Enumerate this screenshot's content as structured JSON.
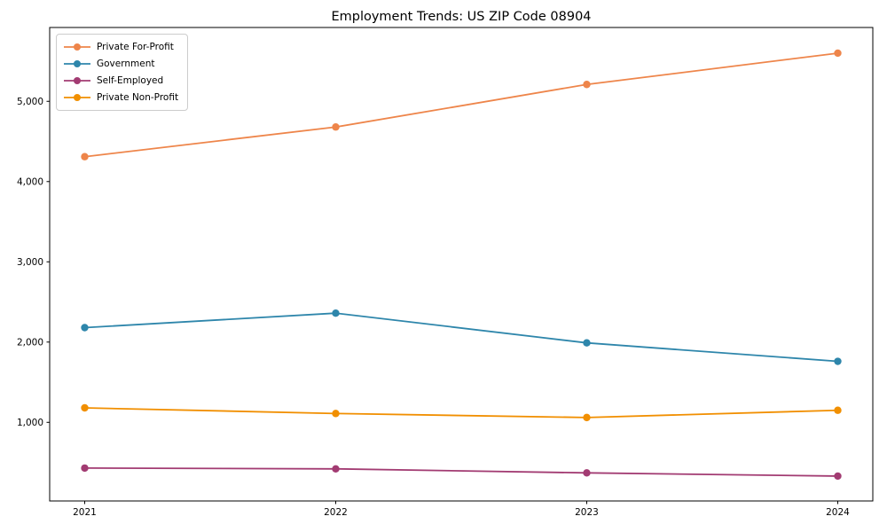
{
  "chart_data": {
    "type": "line",
    "title": "Employment Trends: US ZIP Code 08904",
    "xlabel": "",
    "ylabel": "",
    "categories": [
      "2021",
      "2022",
      "2023",
      "2024"
    ],
    "series": [
      {
        "name": "Private For-Profit",
        "color": "#EE854A",
        "values": [
          4310,
          4680,
          5210,
          5600
        ]
      },
      {
        "name": "Government",
        "color": "#2E86AB",
        "values": [
          2180,
          2360,
          1990,
          1760
        ]
      },
      {
        "name": "Self-Employed",
        "color": "#A23B72",
        "values": [
          430,
          420,
          370,
          330
        ]
      },
      {
        "name": "Private Non-Profit",
        "color": "#F18F01",
        "values": [
          1180,
          1110,
          1060,
          1150
        ]
      }
    ],
    "yticks": [
      1000,
      2000,
      3000,
      4000,
      5000
    ],
    "ylim": [
      20,
      5920
    ],
    "grid": false,
    "legend_position": "upper-left",
    "marker": "circle"
  },
  "colors": {
    "axis": "#000000",
    "background": "#ffffff",
    "legend_border": "#cccccc"
  }
}
